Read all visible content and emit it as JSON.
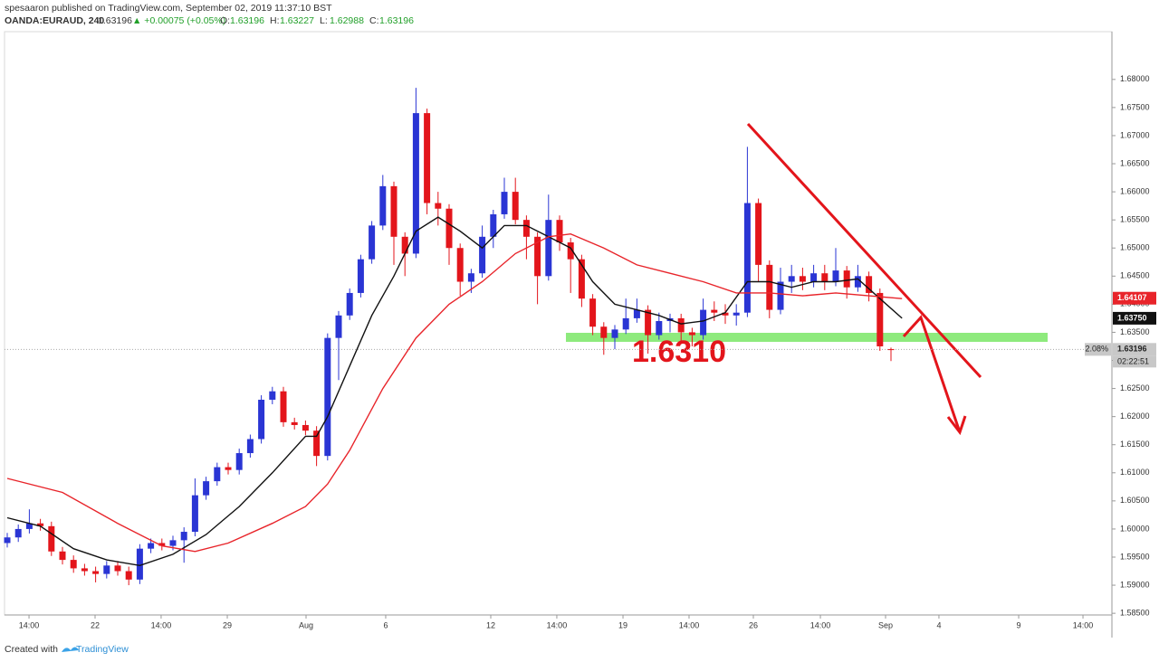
{
  "header": {
    "publisher": "spesaaron published on TradingView.com, September 02, 2019 11:37:10 BST",
    "symbol": "OANDA:EURAUD, 240",
    "last": "1.63196",
    "change": "▲ +0.00075 (+0.05%)",
    "ohlc": [
      "O:",
      "1.63196",
      "H:",
      "1.63227",
      "L:",
      "1.62988",
      "C:",
      "1.63196"
    ]
  },
  "footer": {
    "created": "Created with",
    "brand": "TradingView"
  },
  "chart_data": {
    "type": "candlestick",
    "up_color": "#2a35d4",
    "down_color": "#e3151b",
    "x": [
      0,
      1,
      2,
      3,
      4,
      5,
      6,
      7,
      8,
      9,
      10,
      11,
      12,
      13,
      14,
      15,
      16,
      17,
      18,
      19,
      20,
      21,
      22,
      23,
      24,
      25,
      26,
      27,
      28,
      29,
      30,
      31,
      32,
      33,
      34,
      35,
      36,
      37,
      38,
      39,
      40,
      41,
      42,
      43,
      44,
      45,
      46,
      47,
      48,
      49,
      50,
      51,
      52,
      53,
      54,
      55,
      56,
      57,
      58,
      59,
      60,
      61,
      62,
      63,
      64,
      65,
      66,
      67,
      68,
      69,
      70,
      71,
      72,
      73,
      74,
      75,
      76,
      77,
      78,
      79,
      80
    ],
    "open": [
      1.5975,
      1.5985,
      1.6,
      1.601,
      1.6005,
      1.596,
      1.5945,
      1.593,
      1.5925,
      1.592,
      1.5935,
      1.5925,
      1.591,
      1.5965,
      1.5975,
      1.597,
      1.598,
      1.5995,
      1.606,
      1.6085,
      1.611,
      1.6105,
      1.6135,
      1.616,
      1.623,
      1.6245,
      1.619,
      1.6185,
      1.6175,
      1.613,
      1.634,
      1.638,
      1.642,
      1.648,
      1.654,
      1.661,
      1.652,
      1.649,
      1.674,
      1.658,
      1.657,
      1.65,
      1.644,
      1.6455,
      1.652,
      1.656,
      1.66,
      1.655,
      1.652,
      1.645,
      1.655,
      1.651,
      1.648,
      1.641,
      1.636,
      1.634,
      1.6355,
      1.6375,
      1.639,
      1.6345,
      1.637,
      1.6375,
      1.635,
      1.6345,
      1.639,
      1.6385,
      1.638,
      1.6385,
      1.658,
      1.647,
      1.639,
      1.644,
      1.645,
      1.644,
      1.6455,
      1.644,
      1.646,
      1.643,
      1.645,
      1.642,
      1.632
    ],
    "high": [
      1.5993,
      1.6008,
      1.6035,
      1.6018,
      1.6013,
      1.5968,
      1.5953,
      1.5938,
      1.5933,
      1.5943,
      1.5943,
      1.5933,
      1.5973,
      1.5983,
      1.5983,
      1.5988,
      1.6003,
      1.609,
      1.6093,
      1.6118,
      1.6118,
      1.6143,
      1.6168,
      1.6238,
      1.6253,
      1.6253,
      1.6198,
      1.6193,
      1.6183,
      1.6348,
      1.6388,
      1.6428,
      1.6488,
      1.6548,
      1.663,
      1.6618,
      1.6528,
      1.6785,
      1.6748,
      1.66,
      1.6578,
      1.6508,
      1.6463,
      1.654,
      1.6568,
      1.6625,
      1.6625,
      1.6558,
      1.6528,
      1.6595,
      1.6558,
      1.6518,
      1.6488,
      1.6418,
      1.6368,
      1.6363,
      1.641,
      1.641,
      1.6398,
      1.6385,
      1.6383,
      1.6383,
      1.6358,
      1.641,
      1.6405,
      1.64,
      1.64,
      1.668,
      1.6588,
      1.6478,
      1.6465,
      1.647,
      1.6465,
      1.647,
      1.647,
      1.65,
      1.6468,
      1.647,
      1.6458,
      1.6428,
      1.63227
    ],
    "low": [
      1.5967,
      1.5977,
      1.5992,
      1.5997,
      1.5952,
      1.5937,
      1.5922,
      1.5917,
      1.5905,
      1.5912,
      1.5917,
      1.59,
      1.5902,
      1.5957,
      1.5962,
      1.5962,
      1.594,
      1.5987,
      1.6052,
      1.6077,
      1.6097,
      1.6097,
      1.6127,
      1.6152,
      1.6222,
      1.6182,
      1.6177,
      1.6167,
      1.6112,
      1.6122,
      1.6265,
      1.6372,
      1.6412,
      1.6472,
      1.6532,
      1.647,
      1.645,
      1.6482,
      1.656,
      1.654,
      1.647,
      1.6415,
      1.642,
      1.6447,
      1.65,
      1.6552,
      1.6542,
      1.648,
      1.64,
      1.6442,
      1.6495,
      1.642,
      1.6395,
      1.6345,
      1.631,
      1.632,
      1.6347,
      1.6367,
      1.6312,
      1.6337,
      1.635,
      1.633,
      1.6325,
      1.6337,
      1.637,
      1.6365,
      1.6362,
      1.6377,
      1.644,
      1.6375,
      1.6382,
      1.642,
      1.6425,
      1.643,
      1.6425,
      1.6432,
      1.641,
      1.6422,
      1.6405,
      1.6317,
      1.62988
    ],
    "close": [
      1.5985,
      1.6,
      1.601,
      1.6005,
      1.596,
      1.5945,
      1.593,
      1.5925,
      1.592,
      1.5935,
      1.5925,
      1.591,
      1.5965,
      1.5975,
      1.597,
      1.598,
      1.5995,
      1.606,
      1.6085,
      1.611,
      1.6105,
      1.6135,
      1.616,
      1.623,
      1.6245,
      1.619,
      1.6185,
      1.6175,
      1.613,
      1.634,
      1.638,
      1.642,
      1.648,
      1.654,
      1.661,
      1.652,
      1.649,
      1.674,
      1.658,
      1.657,
      1.65,
      1.644,
      1.6455,
      1.652,
      1.656,
      1.66,
      1.655,
      1.652,
      1.645,
      1.655,
      1.651,
      1.648,
      1.641,
      1.636,
      1.634,
      1.6355,
      1.6375,
      1.639,
      1.6345,
      1.637,
      1.6375,
      1.635,
      1.6345,
      1.639,
      1.6385,
      1.638,
      1.6385,
      1.658,
      1.647,
      1.639,
      1.644,
      1.645,
      1.644,
      1.6455,
      1.644,
      1.646,
      1.643,
      1.645,
      1.642,
      1.6325,
      1.63196
    ],
    "series": [
      {
        "color": "#111111",
        "x": [
          0,
          3,
          6,
          9,
          12,
          15,
          18,
          21,
          24,
          27,
          28,
          29,
          31,
          33,
          35,
          37,
          39,
          41,
          43,
          45,
          47,
          49,
          51,
          53,
          55,
          57,
          59,
          61,
          63,
          65,
          67,
          69,
          71,
          73,
          75,
          77,
          79,
          81
        ],
        "values": [
          1.602,
          1.6005,
          1.5965,
          1.5945,
          1.5935,
          1.5955,
          1.599,
          1.604,
          1.61,
          1.6165,
          1.6165,
          1.62,
          1.629,
          1.638,
          1.645,
          1.653,
          1.6555,
          1.653,
          1.65,
          1.654,
          1.654,
          1.652,
          1.65,
          1.644,
          1.64,
          1.639,
          1.638,
          1.6365,
          1.637,
          1.6385,
          1.644,
          1.644,
          1.643,
          1.644,
          1.644,
          1.6445,
          1.641,
          1.6375
        ]
      },
      {
        "color": "#e8242a",
        "x": [
          0,
          5,
          10,
          14,
          17,
          20,
          24,
          27,
          29,
          31,
          34,
          37,
          40,
          43,
          46,
          49,
          51,
          54,
          57,
          60,
          63,
          66,
          69,
          72,
          75,
          78,
          81
        ],
        "values": [
          1.609,
          1.6065,
          1.601,
          1.597,
          1.596,
          1.5975,
          1.601,
          1.604,
          1.608,
          1.614,
          1.625,
          1.634,
          1.64,
          1.644,
          1.649,
          1.652,
          1.6525,
          1.65,
          1.647,
          1.6455,
          1.644,
          1.642,
          1.642,
          1.6415,
          1.642,
          1.6415,
          1.641
        ]
      }
    ],
    "price_tags": [
      {
        "value": 1.64107,
        "label": "1.64107",
        "color": "#e8242a"
      },
      {
        "value": 1.6375,
        "label": "1.63750",
        "color": "#111111"
      },
      {
        "value": 1.63196,
        "label": "1.63196",
        "color": "#c8c8c8"
      }
    ],
    "change_pct": "2.08%",
    "countdown": "02:22:51",
    "annotation": "1.6310",
    "xlim": [
      0,
      100
    ],
    "ylim": [
      1.5847,
      1.6885
    ],
    "xticks": [
      {
        "value": 1.97,
        "label": "14:00"
      },
      {
        "value": 7.95,
        "label": "22"
      },
      {
        "value": 13.93,
        "label": "14:00"
      },
      {
        "value": 19.92,
        "label": "29"
      },
      {
        "value": 27.05,
        "label": "Aug"
      },
      {
        "value": 34.26,
        "label": "6"
      },
      {
        "value": 43.77,
        "label": "12"
      },
      {
        "value": 49.75,
        "label": "14:00"
      },
      {
        "value": 55.74,
        "label": "19"
      },
      {
        "value": 61.72,
        "label": "14:00"
      },
      {
        "value": 67.54,
        "label": "26"
      },
      {
        "value": 73.61,
        "label": "14:00"
      },
      {
        "value": 79.51,
        "label": "Sep"
      },
      {
        "value": 84.34,
        "label": "4"
      },
      {
        "value": 91.56,
        "label": "9"
      },
      {
        "value": 97.38,
        "label": "14:00"
      }
    ],
    "yticks": [
      {
        "value": 1.585,
        "label": "1.58500"
      },
      {
        "value": 1.59,
        "label": "1.59000"
      },
      {
        "value": 1.595,
        "label": "1.59500"
      },
      {
        "value": 1.6,
        "label": "1.60000"
      },
      {
        "value": 1.605,
        "label": "1.60500"
      },
      {
        "value": 1.61,
        "label": "1.61000"
      },
      {
        "value": 1.615,
        "label": "1.61500"
      },
      {
        "value": 1.62,
        "label": "1.62000"
      },
      {
        "value": 1.625,
        "label": "1.62500"
      },
      {
        "value": 1.63,
        "label": "1.63000"
      },
      {
        "value": 1.635,
        "label": "1.63500"
      },
      {
        "value": 1.64,
        "label": "1.64000"
      },
      {
        "value": 1.645,
        "label": "1.64500"
      },
      {
        "value": 1.65,
        "label": "1.65000"
      },
      {
        "value": 1.655,
        "label": "1.65500"
      },
      {
        "value": 1.66,
        "label": "1.66000"
      },
      {
        "value": 1.665,
        "label": "1.66500"
      },
      {
        "value": 1.67,
        "label": "1.67000"
      },
      {
        "value": 1.675,
        "label": "1.67500"
      },
      {
        "value": 1.68,
        "label": "1.68000"
      }
    ]
  }
}
